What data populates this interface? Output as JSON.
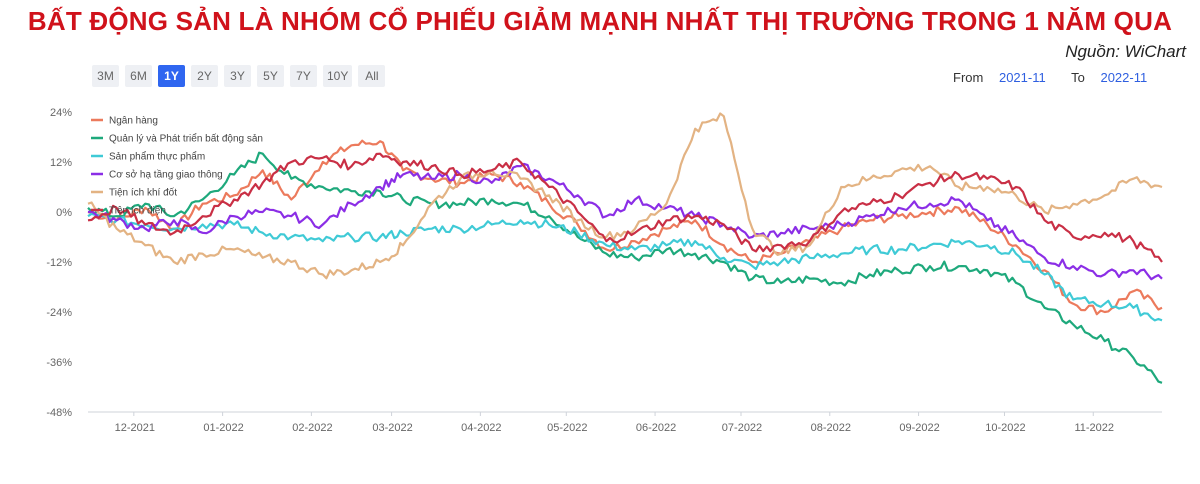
{
  "headline": "BẤT ĐỘNG SẢN LÀ NHÓM CỔ PHIẾU GIẢM MẠNH NHẤT THỊ TRƯỜNG TRONG 1 NĂM QUA",
  "source": "Nguồn: WiChart",
  "range_buttons": [
    "3M",
    "6M",
    "1Y",
    "2Y",
    "3Y",
    "5Y",
    "7Y",
    "10Y",
    "All"
  ],
  "active_range": "1Y",
  "period": {
    "from_label": "From",
    "from_value": "2021-11",
    "to_label": "To",
    "to_value": "2022-11"
  },
  "chart_data": {
    "type": "line",
    "x_start": "2021-11-15",
    "x_end": "2022-11-25",
    "ylim": [
      -48,
      24
    ],
    "y_ticks": [
      24,
      12,
      0,
      -12,
      -24,
      -36,
      -48
    ],
    "y_tick_labels": [
      "24%",
      "12%",
      "0%",
      "-12%",
      "-24%",
      "-36%",
      "-48%"
    ],
    "x_ticks": [
      {
        "date": "2021-12-01",
        "label": "12-2021"
      },
      {
        "date": "2022-01-01",
        "label": "01-2022"
      },
      {
        "date": "2022-02-01",
        "label": "02-2022"
      },
      {
        "date": "2022-03-01",
        "label": "03-2022"
      },
      {
        "date": "2022-04-01",
        "label": "04-2022"
      },
      {
        "date": "2022-05-01",
        "label": "05-2022"
      },
      {
        "date": "2022-06-01",
        "label": "06-2022"
      },
      {
        "date": "2022-07-01",
        "label": "07-2022"
      },
      {
        "date": "2022-08-01",
        "label": "08-2022"
      },
      {
        "date": "2022-09-01",
        "label": "09-2022"
      },
      {
        "date": "2022-10-01",
        "label": "10-2022"
      },
      {
        "date": "2022-11-01",
        "label": "11-2022"
      }
    ],
    "legend_position": "top-left",
    "grid": false,
    "series": [
      {
        "name": "Ngân hàng",
        "color": "#ec7a5c",
        "points": [
          [
            "2021-11-15",
            0
          ],
          [
            "2021-11-25",
            -2
          ],
          [
            "2021-12-05",
            1
          ],
          [
            "2021-12-15",
            -4
          ],
          [
            "2021-12-25",
            2
          ],
          [
            "2022-01-05",
            4
          ],
          [
            "2022-01-15",
            10
          ],
          [
            "2022-01-25",
            3
          ],
          [
            "2022-02-05",
            12
          ],
          [
            "2022-02-15",
            16
          ],
          [
            "2022-02-25",
            17
          ],
          [
            "2022-03-05",
            10
          ],
          [
            "2022-03-15",
            8
          ],
          [
            "2022-03-25",
            7
          ],
          [
            "2022-04-05",
            9
          ],
          [
            "2022-04-15",
            7
          ],
          [
            "2022-04-25",
            2
          ],
          [
            "2022-05-05",
            -3
          ],
          [
            "2022-05-15",
            -9
          ],
          [
            "2022-05-25",
            -7
          ],
          [
            "2022-06-05",
            -4
          ],
          [
            "2022-06-15",
            -2
          ],
          [
            "2022-06-25",
            -8
          ],
          [
            "2022-07-05",
            -12
          ],
          [
            "2022-07-15",
            -10
          ],
          [
            "2022-07-25",
            -7
          ],
          [
            "2022-08-05",
            -4
          ],
          [
            "2022-08-15",
            -2
          ],
          [
            "2022-08-25",
            -1
          ],
          [
            "2022-09-05",
            0
          ],
          [
            "2022-09-15",
            1
          ],
          [
            "2022-09-25",
            -3
          ],
          [
            "2022-10-05",
            -8
          ],
          [
            "2022-10-15",
            -14
          ],
          [
            "2022-10-25",
            -22
          ],
          [
            "2022-11-05",
            -24
          ],
          [
            "2022-11-15",
            -19
          ],
          [
            "2022-11-25",
            -23
          ]
        ]
      },
      {
        "name": "Quản lý và Phát triển bất động sản",
        "color": "#1ea97c",
        "points": [
          [
            "2021-11-15",
            1
          ],
          [
            "2021-11-25",
            -1
          ],
          [
            "2021-12-05",
            2
          ],
          [
            "2021-12-15",
            -1
          ],
          [
            "2021-12-25",
            3
          ],
          [
            "2022-01-05",
            9
          ],
          [
            "2022-01-15",
            14
          ],
          [
            "2022-01-25",
            8
          ],
          [
            "2022-02-05",
            6
          ],
          [
            "2022-02-15",
            5
          ],
          [
            "2022-02-25",
            5
          ],
          [
            "2022-03-05",
            3
          ],
          [
            "2022-03-15",
            2
          ],
          [
            "2022-03-25",
            2
          ],
          [
            "2022-04-05",
            3
          ],
          [
            "2022-04-15",
            2
          ],
          [
            "2022-04-25",
            -1
          ],
          [
            "2022-05-05",
            -6
          ],
          [
            "2022-05-15",
            -10
          ],
          [
            "2022-05-25",
            -11
          ],
          [
            "2022-06-05",
            -9
          ],
          [
            "2022-06-15",
            -10
          ],
          [
            "2022-06-25",
            -12
          ],
          [
            "2022-07-05",
            -16
          ],
          [
            "2022-07-15",
            -17
          ],
          [
            "2022-07-25",
            -16
          ],
          [
            "2022-08-05",
            -17
          ],
          [
            "2022-08-15",
            -15
          ],
          [
            "2022-08-25",
            -14
          ],
          [
            "2022-09-05",
            -13
          ],
          [
            "2022-09-15",
            -13
          ],
          [
            "2022-09-25",
            -14
          ],
          [
            "2022-10-05",
            -17
          ],
          [
            "2022-10-15",
            -23
          ],
          [
            "2022-10-25",
            -27
          ],
          [
            "2022-11-05",
            -31
          ],
          [
            "2022-11-15",
            -35
          ],
          [
            "2022-11-25",
            -41
          ]
        ]
      },
      {
        "name": "Sản phẩm thực phẩm",
        "color": "#3fcad6",
        "points": [
          [
            "2021-11-15",
            -1
          ],
          [
            "2021-11-25",
            -2
          ],
          [
            "2021-12-05",
            -3
          ],
          [
            "2021-12-15",
            -4
          ],
          [
            "2021-12-25",
            -3
          ],
          [
            "2022-01-05",
            -3
          ],
          [
            "2022-01-15",
            -5
          ],
          [
            "2022-01-25",
            -6
          ],
          [
            "2022-02-05",
            -7
          ],
          [
            "2022-02-15",
            -6
          ],
          [
            "2022-02-25",
            -6
          ],
          [
            "2022-03-05",
            -5
          ],
          [
            "2022-03-15",
            -4
          ],
          [
            "2022-03-25",
            -4
          ],
          [
            "2022-04-05",
            -3
          ],
          [
            "2022-04-15",
            -2
          ],
          [
            "2022-04-25",
            -3
          ],
          [
            "2022-05-05",
            -5
          ],
          [
            "2022-05-15",
            -8
          ],
          [
            "2022-05-25",
            -9
          ],
          [
            "2022-06-05",
            -8
          ],
          [
            "2022-06-15",
            -7
          ],
          [
            "2022-06-25",
            -11
          ],
          [
            "2022-07-05",
            -13
          ],
          [
            "2022-07-15",
            -12
          ],
          [
            "2022-07-25",
            -11
          ],
          [
            "2022-08-05",
            -10
          ],
          [
            "2022-08-15",
            -9
          ],
          [
            "2022-08-25",
            -9
          ],
          [
            "2022-09-05",
            -8
          ],
          [
            "2022-09-15",
            -7
          ],
          [
            "2022-09-25",
            -8
          ],
          [
            "2022-10-05",
            -10
          ],
          [
            "2022-10-15",
            -15
          ],
          [
            "2022-10-25",
            -21
          ],
          [
            "2022-11-05",
            -22
          ],
          [
            "2022-11-15",
            -23
          ],
          [
            "2022-11-25",
            -26
          ]
        ]
      },
      {
        "name": "Cơ sở hạ tầng giao thông",
        "color": "#8b2ee6",
        "points": [
          [
            "2021-11-15",
            0
          ],
          [
            "2021-11-25",
            -2
          ],
          [
            "2021-12-05",
            -4
          ],
          [
            "2021-12-15",
            -2
          ],
          [
            "2021-12-25",
            -5
          ],
          [
            "2022-01-05",
            -1
          ],
          [
            "2022-01-15",
            0
          ],
          [
            "2022-01-25",
            -1
          ],
          [
            "2022-02-05",
            -3
          ],
          [
            "2022-02-15",
            2
          ],
          [
            "2022-02-25",
            6
          ],
          [
            "2022-03-05",
            9
          ],
          [
            "2022-03-15",
            8
          ],
          [
            "2022-03-25",
            9
          ],
          [
            "2022-04-05",
            7
          ],
          [
            "2022-04-15",
            11
          ],
          [
            "2022-04-25",
            8
          ],
          [
            "2022-05-05",
            4
          ],
          [
            "2022-05-15",
            -1
          ],
          [
            "2022-05-25",
            3
          ],
          [
            "2022-06-05",
            1
          ],
          [
            "2022-06-15",
            -1
          ],
          [
            "2022-06-25",
            -3
          ],
          [
            "2022-07-05",
            -6
          ],
          [
            "2022-07-15",
            -5
          ],
          [
            "2022-07-25",
            -4
          ],
          [
            "2022-08-05",
            -3
          ],
          [
            "2022-08-15",
            -1
          ],
          [
            "2022-08-25",
            1
          ],
          [
            "2022-09-05",
            2
          ],
          [
            "2022-09-15",
            3
          ],
          [
            "2022-09-25",
            -2
          ],
          [
            "2022-10-05",
            -6
          ],
          [
            "2022-10-15",
            -11
          ],
          [
            "2022-10-25",
            -13
          ],
          [
            "2022-11-05",
            -15
          ],
          [
            "2022-11-15",
            -14
          ],
          [
            "2022-11-25",
            -16
          ]
        ]
      },
      {
        "name": "Tiện ích khí đốt",
        "color": "#e3b383",
        "points": [
          [
            "2021-11-15",
            2
          ],
          [
            "2021-11-25",
            -4
          ],
          [
            "2021-12-05",
            -8
          ],
          [
            "2021-12-15",
            -12
          ],
          [
            "2021-12-25",
            -10
          ],
          [
            "2022-01-05",
            -9
          ],
          [
            "2022-01-15",
            -11
          ],
          [
            "2022-01-25",
            -12
          ],
          [
            "2022-02-05",
            -15
          ],
          [
            "2022-02-15",
            -14
          ],
          [
            "2022-02-25",
            -12
          ],
          [
            "2022-03-05",
            -8
          ],
          [
            "2022-03-15",
            2
          ],
          [
            "2022-03-25",
            8
          ],
          [
            "2022-04-05",
            10
          ],
          [
            "2022-04-15",
            8
          ],
          [
            "2022-04-25",
            4
          ],
          [
            "2022-05-05",
            -2
          ],
          [
            "2022-05-15",
            -6
          ],
          [
            "2022-05-25",
            -4
          ],
          [
            "2022-06-05",
            2
          ],
          [
            "2022-06-15",
            20
          ],
          [
            "2022-06-25",
            23
          ],
          [
            "2022-07-05",
            -4
          ],
          [
            "2022-07-15",
            -10
          ],
          [
            "2022-07-25",
            -8
          ],
          [
            "2022-08-05",
            6
          ],
          [
            "2022-08-15",
            8
          ],
          [
            "2022-08-25",
            10
          ],
          [
            "2022-09-05",
            11
          ],
          [
            "2022-09-15",
            6
          ],
          [
            "2022-09-25",
            6
          ],
          [
            "2022-10-05",
            4
          ],
          [
            "2022-10-15",
            0
          ],
          [
            "2022-10-25",
            2
          ],
          [
            "2022-11-05",
            4
          ],
          [
            "2022-11-15",
            8
          ],
          [
            "2022-11-25",
            6
          ]
        ]
      },
      {
        "name": "Tiện ích điện",
        "color": "#c92f45",
        "points": [
          [
            "2021-11-15",
            -2
          ],
          [
            "2021-11-25",
            1
          ],
          [
            "2021-12-05",
            -3
          ],
          [
            "2021-12-15",
            -5
          ],
          [
            "2021-12-25",
            -1
          ],
          [
            "2022-01-05",
            3
          ],
          [
            "2022-01-15",
            7
          ],
          [
            "2022-01-25",
            12
          ],
          [
            "2022-02-05",
            13
          ],
          [
            "2022-02-15",
            11
          ],
          [
            "2022-02-25",
            14
          ],
          [
            "2022-03-05",
            12
          ],
          [
            "2022-03-15",
            11
          ],
          [
            "2022-03-25",
            9
          ],
          [
            "2022-04-05",
            10
          ],
          [
            "2022-04-15",
            12
          ],
          [
            "2022-04-25",
            6
          ],
          [
            "2022-05-05",
            0
          ],
          [
            "2022-05-15",
            -7
          ],
          [
            "2022-05-25",
            -5
          ],
          [
            "2022-06-05",
            -2
          ],
          [
            "2022-06-15",
            -1
          ],
          [
            "2022-06-25",
            -3
          ],
          [
            "2022-07-05",
            -9
          ],
          [
            "2022-07-15",
            -8
          ],
          [
            "2022-07-25",
            -7
          ],
          [
            "2022-08-05",
            0
          ],
          [
            "2022-08-15",
            2
          ],
          [
            "2022-08-25",
            4
          ],
          [
            "2022-09-05",
            7
          ],
          [
            "2022-09-15",
            9
          ],
          [
            "2022-09-25",
            8
          ],
          [
            "2022-10-05",
            6
          ],
          [
            "2022-10-15",
            -2
          ],
          [
            "2022-10-25",
            -6
          ],
          [
            "2022-11-05",
            -5
          ],
          [
            "2022-11-15",
            -7
          ],
          [
            "2022-11-25",
            -12
          ]
        ]
      }
    ]
  }
}
